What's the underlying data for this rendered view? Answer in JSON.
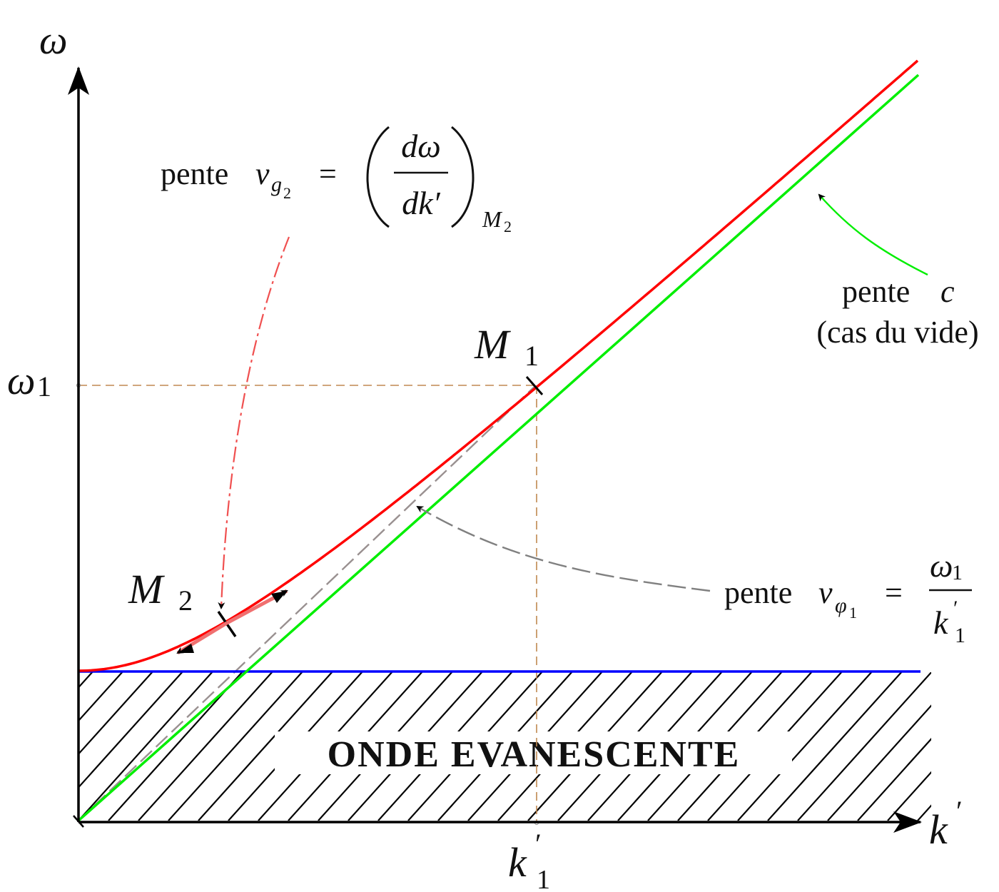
{
  "axes": {
    "y_label": "ω",
    "x_label": "k",
    "x_label_prime": "′",
    "y_tick_label": "ω",
    "y_tick_sub": "1",
    "x_tick_label": "k",
    "x_tick_prime": "′",
    "x_tick_sub": "1"
  },
  "points": {
    "m1": {
      "letter": "M",
      "sub": "1"
    },
    "m2": {
      "letter": "M",
      "sub": "2"
    }
  },
  "region_label": "ONDE EVANESCENTE",
  "annotations": {
    "group_velocity": {
      "word": "pente",
      "var": "v",
      "sub": "g",
      "subsub": "2",
      "equals": "=",
      "num": "dω",
      "den": "dk′",
      "eval_at": "M",
      "eval_sub": "2"
    },
    "vacuum": {
      "line1_word": "pente",
      "line1_var": "c",
      "line2": "(cas du vide)"
    },
    "phase_velocity": {
      "word": "pente",
      "var": "v",
      "sub": "φ",
      "subsub": "1",
      "equals": "=",
      "num": "ω",
      "num_sub": "1",
      "den": "k",
      "den_prime": "′",
      "den_sub": "1"
    }
  },
  "colors": {
    "dispersion_curve": "#ff0000",
    "vacuum_line": "#00ee00",
    "cutoff_line": "#0000ff",
    "guide_lines": "#c08850",
    "phase_slope_line": "#999090",
    "group_arrow": "#f05050",
    "phase_arrow": "#808080",
    "axes": "#000000"
  }
}
